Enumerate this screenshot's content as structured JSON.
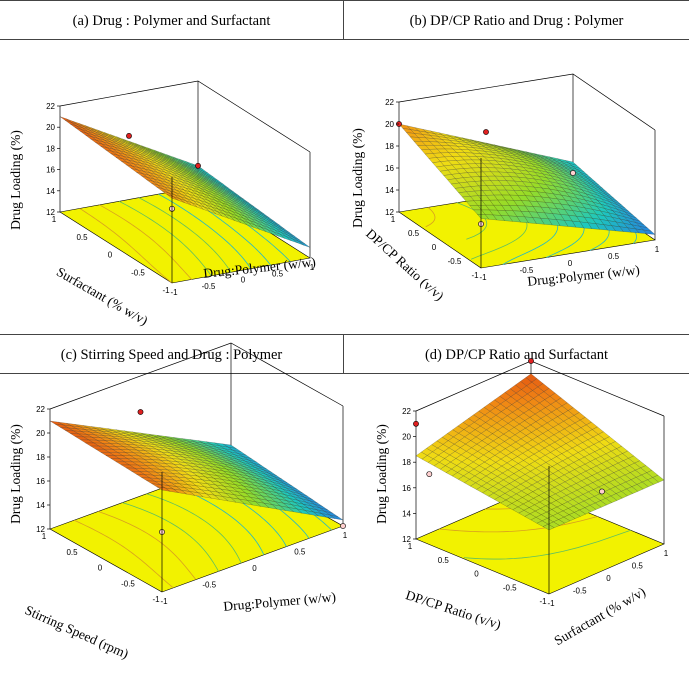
{
  "chart_data": [
    {
      "id": "a",
      "type": "surface3d",
      "title": "(a) Drug : Polymer and Surfactant",
      "zlabel": "Drug Loading (%)",
      "xlabel": "Drug:Polymer (w/w)",
      "ylabel": "Surfactant (% w/v)",
      "zlim": [
        12,
        22
      ],
      "z_ticks": [
        "12",
        "14",
        "16",
        "18",
        "20",
        "22"
      ],
      "x_ticks": [
        "-1",
        "-0.5",
        "0",
        "0.5",
        "1"
      ],
      "y_ticks": [
        "-1",
        "-0.5",
        "0",
        "0.5",
        "1"
      ],
      "surface_corners": {
        "x-1_y1": 21,
        "x1_y1": 14,
        "x-1_y-1": 20,
        "x1_y-1": 13,
        "center": 17.5
      },
      "design_points": [
        {
          "x": 0,
          "y": 1,
          "z": 18
        },
        {
          "x": 1,
          "y": 1,
          "z": 14
        },
        {
          "x": -1,
          "y": -1,
          "z": 19
        }
      ]
    },
    {
      "id": "b",
      "type": "surface3d",
      "title": "(b) DP/CP Ratio and Drug : Polymer",
      "zlabel": "Drug Loading (%)",
      "xlabel": "Drug:Polymer (w/w)",
      "ylabel": "DP/CP Ratio (v/v)",
      "zlim": [
        12,
        22
      ],
      "z_ticks": [
        "12",
        "14",
        "16",
        "18",
        "20",
        "22"
      ],
      "x_ticks": [
        "-1",
        "-0.5",
        "0",
        "0.5",
        "1"
      ],
      "y_ticks": [
        "-1",
        "-0.5",
        "0",
        "0.5",
        "1"
      ],
      "surface_corners": {
        "x-1_y1": 20,
        "x1_y1": 14,
        "x-1_y-1": 16.5,
        "x1_y-1": 12.5,
        "center": 17
      },
      "design_points": [
        {
          "x": -1,
          "y": 1,
          "z": 20
        },
        {
          "x": 0,
          "y": 1,
          "z": 18
        },
        {
          "x": 1,
          "y": 1,
          "z": 13
        },
        {
          "x": -1,
          "y": -1,
          "z": 16
        }
      ]
    },
    {
      "id": "c",
      "type": "surface3d",
      "title": "(c) Stirring Speed and Drug : Polymer",
      "zlabel": "Drug Loading (%)",
      "xlabel": "Drug:Polymer (w/w)",
      "ylabel": "Stirring Speed (rpm)",
      "zlim": [
        12,
        22
      ],
      "z_ticks": [
        "12",
        "14",
        "16",
        "18",
        "20",
        "22"
      ],
      "x_ticks": [
        "-1",
        "-0.5",
        "0",
        "0.5",
        "1"
      ],
      "y_ticks": [
        "-1",
        "-0.5",
        "0",
        "0.5",
        "1"
      ],
      "surface_corners": {
        "x-1_y1": 21,
        "x1_y1": 13.5,
        "x-1_y-1": 20.5,
        "x1_y-1": 12.5,
        "center": 17.5
      },
      "design_points": [
        {
          "x": 0,
          "y": 1,
          "z": 19
        },
        {
          "x": -1,
          "y": -1,
          "z": 17
        },
        {
          "x": 1,
          "y": -1,
          "z": 12
        }
      ]
    },
    {
      "id": "d",
      "type": "surface3d",
      "title": "(d) DP/CP Ratio and Surfactant",
      "zlabel": "Drug Loading (%)",
      "xlabel": "Surfactant (% w/v)",
      "ylabel": "DP/CP Ratio (v/v)",
      "zlim": [
        12,
        22
      ],
      "z_ticks": [
        "12",
        "14",
        "16",
        "18",
        "20",
        "22"
      ],
      "x_ticks": [
        "-1",
        "-0.5",
        "0",
        "0.5",
        "1"
      ],
      "y_ticks": [
        "-1",
        "-0.5",
        "0",
        "0.5",
        "1"
      ],
      "surface_corners": {
        "x-1_y1": 18.5,
        "x1_y1": 21,
        "x-1_y-1": 17,
        "x1_y-1": 17,
        "center": 18.5
      },
      "design_points": [
        {
          "x": -1,
          "y": 1,
          "z": 21
        },
        {
          "x": 1,
          "y": 1,
          "z": 22
        },
        {
          "x": -1,
          "y": 0.8,
          "z": 17.5
        },
        {
          "x": 0.5,
          "y": -0.5,
          "z": 16
        }
      ]
    }
  ]
}
